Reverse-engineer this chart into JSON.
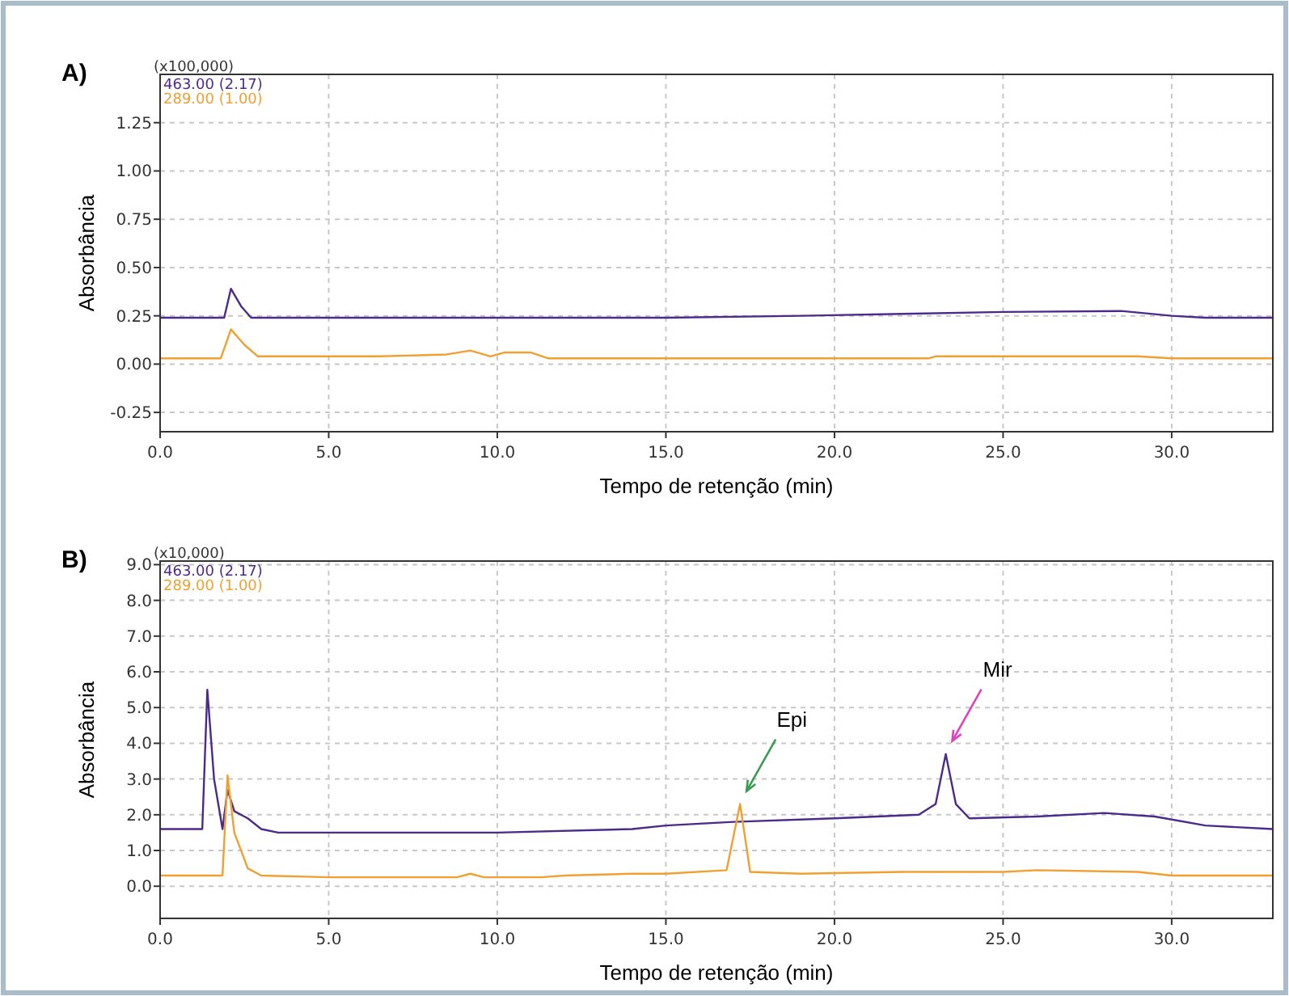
{
  "chart_data": [
    {
      "type": "line",
      "title": "A)",
      "xlabel": "Tempo de retenção (min)",
      "ylabel": "Absorbância",
      "annotations": [
        "(x100,000)"
      ],
      "xlim": [
        0,
        33
      ],
      "ylim": [
        -0.35,
        1.5
      ],
      "xticks": [
        {
          "value": 0,
          "label": "0.0"
        },
        {
          "value": 5,
          "label": "5.0"
        },
        {
          "value": 10,
          "label": "10.0"
        },
        {
          "value": 15,
          "label": "15.0"
        },
        {
          "value": 20,
          "label": "20.0"
        },
        {
          "value": 25,
          "label": "25.0"
        },
        {
          "value": 30,
          "label": "30.0"
        }
      ],
      "yticks": [
        {
          "value": -0.25,
          "label": "-0.25"
        },
        {
          "value": 0,
          "label": "0.00"
        },
        {
          "value": 0.25,
          "label": "0.25"
        },
        {
          "value": 0.5,
          "label": "0.50"
        },
        {
          "value": 0.75,
          "label": "0.75"
        },
        {
          "value": 1,
          "label": "1.00"
        },
        {
          "value": 1.25,
          "label": "1.25"
        }
      ],
      "grid": true,
      "legend": "top left",
      "line_style": "solid",
      "series": [
        {
          "name": "463.00 (2.17)",
          "color": "#4b2a8a",
          "x": [
            0,
            1.9,
            2.1,
            2.4,
            2.7,
            6,
            10,
            15,
            19,
            22,
            25,
            28.5,
            30,
            31,
            33
          ],
          "values": [
            0.24,
            0.24,
            0.39,
            0.3,
            0.24,
            0.24,
            0.24,
            0.24,
            0.25,
            0.26,
            0.27,
            0.275,
            0.25,
            0.24,
            0.24
          ]
        },
        {
          "name": "289.00 (1.00)",
          "color": "#f0a030",
          "x": [
            0,
            1.8,
            2.1,
            2.5,
            2.9,
            6.5,
            8.5,
            9.2,
            9.8,
            10.2,
            11,
            11.5,
            22.8,
            23,
            29,
            30,
            33
          ],
          "values": [
            0.03,
            0.03,
            0.18,
            0.1,
            0.04,
            0.04,
            0.05,
            0.07,
            0.04,
            0.06,
            0.06,
            0.03,
            0.03,
            0.04,
            0.04,
            0.03,
            0.03
          ]
        }
      ]
    },
    {
      "type": "line",
      "title": "B)",
      "xlabel": "Tempo de retenção (min)",
      "ylabel": "Absorbância",
      "annotations": [
        "(x10,000)",
        {
          "text": "Epi",
          "x": 17.2,
          "y": 2.3
        },
        {
          "text": "Mir",
          "x": 23.3,
          "y": 3.7
        }
      ],
      "xlim": [
        0,
        33
      ],
      "ylim": [
        -0.9,
        9.1
      ],
      "xticks": [
        {
          "value": 0,
          "label": "0.0"
        },
        {
          "value": 5,
          "label": "5.0"
        },
        {
          "value": 10,
          "label": "10.0"
        },
        {
          "value": 15,
          "label": "15.0"
        },
        {
          "value": 20,
          "label": "20.0"
        },
        {
          "value": 25,
          "label": "25.0"
        },
        {
          "value": 30,
          "label": "30.0"
        }
      ],
      "yticks": [
        {
          "value": 0,
          "label": "0.0"
        },
        {
          "value": 1,
          "label": "1.0"
        },
        {
          "value": 2,
          "label": "2.0"
        },
        {
          "value": 3,
          "label": "3.0"
        },
        {
          "value": 4,
          "label": "4.0"
        },
        {
          "value": 5,
          "label": "5.0"
        },
        {
          "value": 6,
          "label": "6.0"
        },
        {
          "value": 7,
          "label": "7.0"
        },
        {
          "value": 8,
          "label": "8.0"
        },
        {
          "value": 9,
          "label": "9.0"
        }
      ],
      "grid": true,
      "legend": "top left",
      "line_style": "solid",
      "series": [
        {
          "name": "463.00 (2.17)",
          "color": "#4b2a8a",
          "x": [
            0,
            1.25,
            1.27,
            1.4,
            1.6,
            1.85,
            2.0,
            2.2,
            2.6,
            3.0,
            3.5,
            10,
            14,
            15,
            17,
            20,
            22.5,
            23.0,
            23.3,
            23.6,
            24,
            26,
            28,
            29.5,
            31,
            33
          ],
          "values": [
            1.6,
            1.6,
            2.1,
            5.5,
            3.0,
            1.6,
            2.7,
            2.1,
            1.9,
            1.6,
            1.5,
            1.5,
            1.6,
            1.7,
            1.8,
            1.9,
            2.0,
            2.3,
            3.7,
            2.3,
            1.9,
            1.95,
            2.05,
            1.95,
            1.7,
            1.6
          ]
        },
        {
          "name": "289.00 (1.00)",
          "color": "#f0a030",
          "x": [
            0,
            1.85,
            2.0,
            2.2,
            2.6,
            3.0,
            5,
            8.8,
            9.2,
            9.6,
            11.3,
            12,
            14,
            15,
            16.8,
            17.2,
            17.5,
            19,
            22,
            25,
            26,
            29,
            30,
            33
          ],
          "values": [
            0.3,
            0.3,
            3.1,
            1.5,
            0.5,
            0.3,
            0.25,
            0.25,
            0.35,
            0.25,
            0.25,
            0.3,
            0.35,
            0.35,
            0.45,
            2.3,
            0.4,
            0.35,
            0.4,
            0.4,
            0.45,
            0.4,
            0.3,
            0.3
          ]
        }
      ]
    }
  ]
}
